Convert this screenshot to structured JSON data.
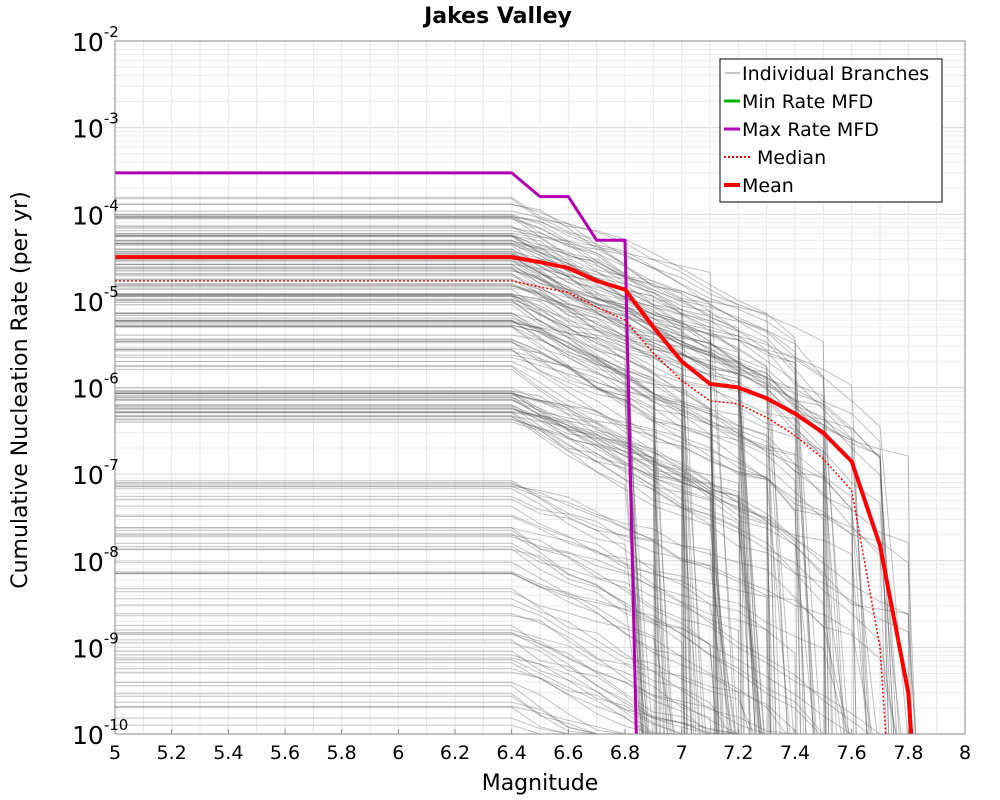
{
  "chart_data": {
    "type": "line",
    "title": "Jakes Valley",
    "xlabel": "Magnitude",
    "ylabel": "Cumulative Nucleation Rate (per yr)",
    "xlim": [
      5,
      8
    ],
    "ylim_exponents": [
      -10,
      -2
    ],
    "y_scale": "log",
    "x_ticks": [
      "5",
      "5.2",
      "5.4",
      "5.6",
      "5.8",
      "6",
      "6.2",
      "6.4",
      "6.6",
      "6.8",
      "7",
      "7.2",
      "7.4",
      "7.6",
      "7.8",
      "8"
    ],
    "y_tick_exponents": [
      "-2",
      "-3",
      "-4",
      "-5",
      "-6",
      "-7",
      "-8",
      "-9",
      "-10"
    ],
    "y_tick_base": "10",
    "grid": true,
    "legend_position": "top-right",
    "legend": [
      {
        "label": "Individual Branches",
        "color": "#b4b4b4",
        "style": "solid-thin"
      },
      {
        "label": "Min Rate MFD",
        "color": "#00b400",
        "style": "solid"
      },
      {
        "label": "Max Rate MFD",
        "color": "#b400b4",
        "style": "solid"
      },
      {
        "label": "Median",
        "color": "#ff0000",
        "style": "dotted"
      },
      {
        "label": "Mean",
        "color": "#ff0000",
        "style": "solid-thick"
      }
    ],
    "series": [
      {
        "name": "Max Rate MFD",
        "color": "#b400b4",
        "x": [
          5.0,
          6.4,
          6.5,
          6.6,
          6.7,
          6.8,
          6.84
        ],
        "y": [
          0.0003,
          0.0003,
          0.00016,
          0.00016,
          5e-05,
          5e-05,
          1e-10
        ]
      },
      {
        "name": "Mean",
        "color": "#ff0000",
        "x": [
          5.0,
          6.4,
          6.5,
          6.6,
          6.7,
          6.8,
          6.9,
          7.0,
          7.1,
          7.2,
          7.3,
          7.4,
          7.5,
          7.6,
          7.7,
          7.8,
          7.81
        ],
        "y": [
          3.2e-05,
          3.2e-05,
          2.8e-05,
          2.4e-05,
          1.7e-05,
          1.35e-05,
          5e-06,
          2e-06,
          1.1e-06,
          1e-06,
          7.5e-07,
          5e-07,
          3e-07,
          1.4e-07,
          1.5e-08,
          3e-10,
          1e-10
        ]
      },
      {
        "name": "Median",
        "color": "#ff0000",
        "x": [
          5.0,
          6.4,
          6.5,
          6.6,
          6.7,
          6.8,
          6.9,
          7.0,
          7.1,
          7.2,
          7.3,
          7.4,
          7.5,
          7.6,
          7.7,
          7.72
        ],
        "y": [
          1.7e-05,
          1.7e-05,
          1.45e-05,
          1.25e-05,
          8.5e-06,
          6e-06,
          2.5e-06,
          1.2e-06,
          7e-07,
          6.5e-07,
          4.5e-07,
          2.8e-07,
          1.5e-07,
          6.5e-08,
          1e-09,
          1e-10
        ]
      }
    ]
  }
}
